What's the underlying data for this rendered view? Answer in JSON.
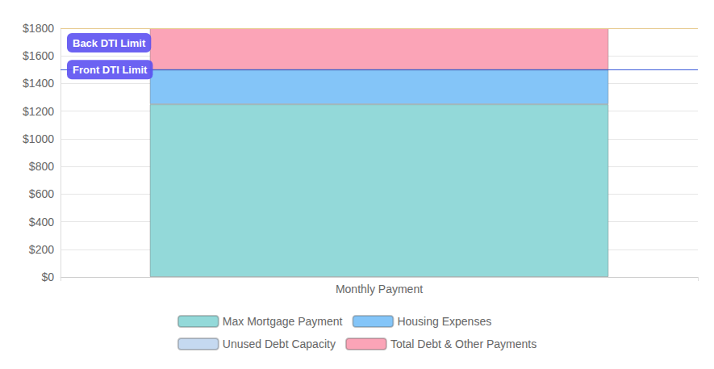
{
  "chart_data": {
    "type": "bar",
    "stacked": true,
    "grid": true,
    "legend": "bottom",
    "categories": [
      "Monthly Payment"
    ],
    "series": [
      {
        "name": "Max Mortgage Payment",
        "color": "#93d9d9",
        "values": [
          1250
        ]
      },
      {
        "name": "Housing Expenses",
        "color": "#84c5f8",
        "values": [
          250
        ]
      },
      {
        "name": "Unused Debt Capacity",
        "color": "#c5d9f0",
        "values": [
          0
        ]
      },
      {
        "name": "Total Debt & Other Payments",
        "color": "#fba4b7",
        "values": [
          300
        ]
      }
    ],
    "ylim": [
      0,
      1800
    ],
    "yticks": [
      {
        "value": 0,
        "label": "$0"
      },
      {
        "value": 200,
        "label": "$200"
      },
      {
        "value": 400,
        "label": "$400"
      },
      {
        "value": 600,
        "label": "$600"
      },
      {
        "value": 800,
        "label": "$800"
      },
      {
        "value": 1000,
        "label": "$1000"
      },
      {
        "value": 1200,
        "label": "$1200"
      },
      {
        "value": 1400,
        "label": "$1400"
      },
      {
        "value": 1600,
        "label": "$1600"
      },
      {
        "value": 1800,
        "label": "$1800"
      }
    ],
    "annotations": [
      {
        "label": "Back DTI Limit",
        "value": 1800,
        "color": "#e6c88a"
      },
      {
        "label": "Front DTI Limit",
        "value": 1500,
        "color": "#3b5bd9"
      }
    ]
  }
}
